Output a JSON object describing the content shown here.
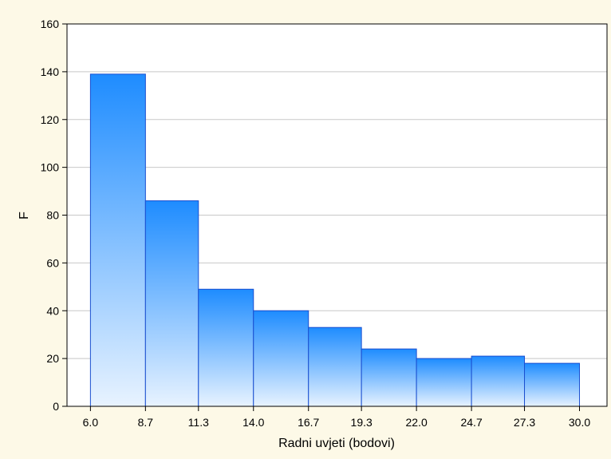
{
  "chart_data": {
    "type": "bar",
    "categories": [
      "6.0",
      "8.7",
      "11.3",
      "14.0",
      "16.7",
      "19.3",
      "22.0",
      "24.7",
      "27.3",
      "30.0"
    ],
    "bins": [
      {
        "from": 6.0,
        "to": 8.7,
        "value": 139
      },
      {
        "from": 8.7,
        "to": 11.3,
        "value": 86
      },
      {
        "from": 11.3,
        "to": 14.0,
        "value": 49
      },
      {
        "from": 14.0,
        "to": 16.7,
        "value": 40
      },
      {
        "from": 16.7,
        "to": 19.3,
        "value": 33
      },
      {
        "from": 19.3,
        "to": 22.0,
        "value": 24
      },
      {
        "from": 22.0,
        "to": 24.7,
        "value": 20
      },
      {
        "from": 24.7,
        "to": 27.3,
        "value": 21
      },
      {
        "from": 27.3,
        "to": 30.0,
        "value": 18
      }
    ],
    "xlabel": "Radni uvjeti (bodovi)",
    "ylabel": "F",
    "ylim": [
      0,
      160
    ],
    "yticks": [
      0,
      20,
      40,
      60,
      80,
      100,
      120,
      140,
      160
    ],
    "grid": true,
    "colors": {
      "bar_top": "#1e8cff",
      "bar_bottom": "#e8f3ff",
      "bar_edge": "#1a4fd0",
      "grid": "#c8c8c8",
      "background": "#fdf9e7",
      "plot_area": "#ffffff"
    }
  }
}
